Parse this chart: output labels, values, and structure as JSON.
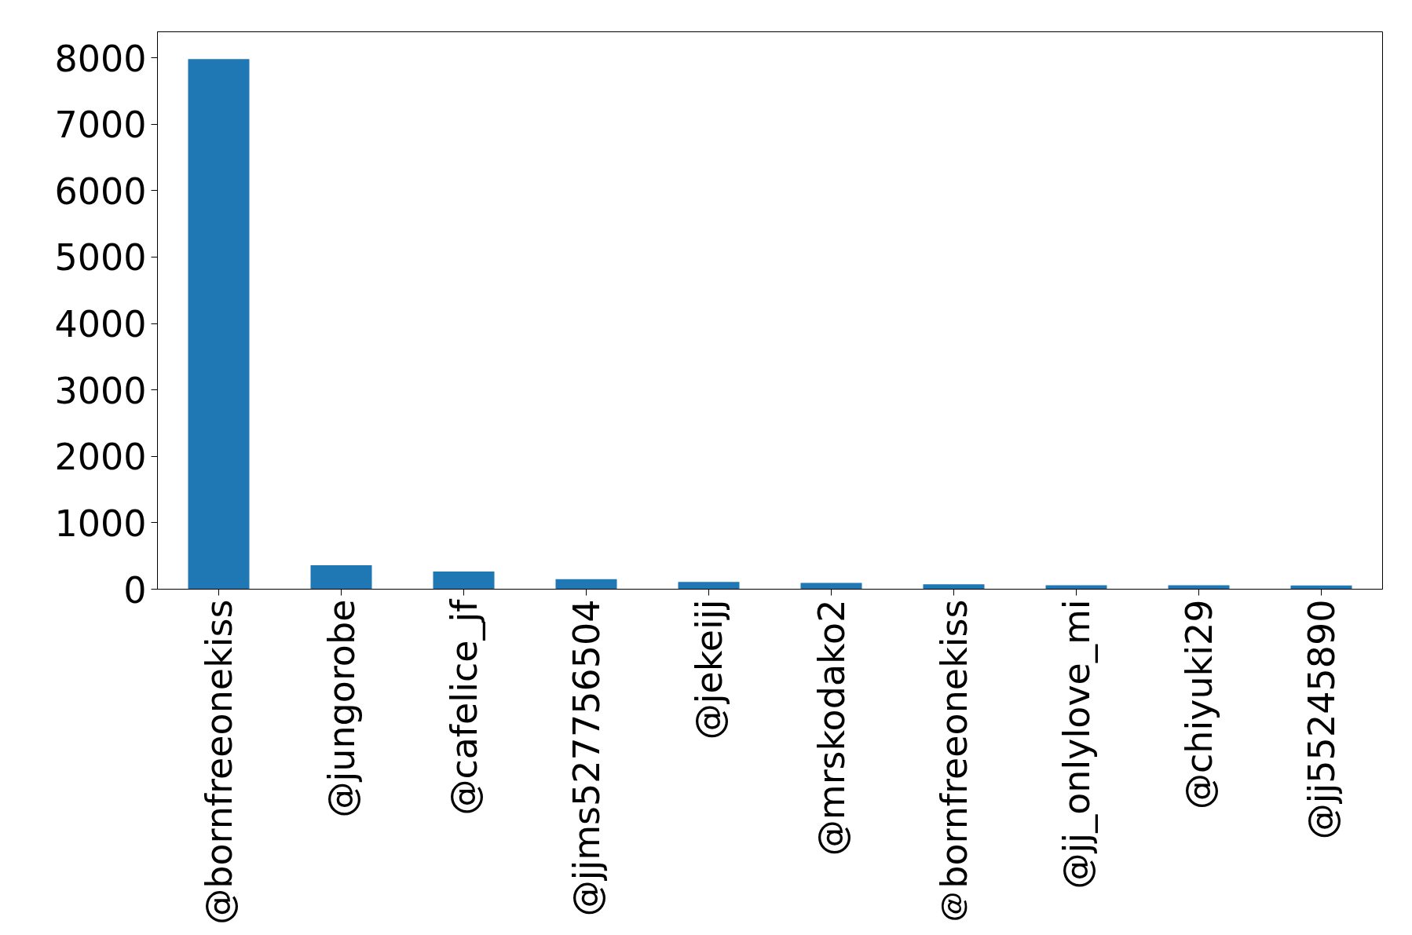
{
  "chart_data": {
    "type": "bar",
    "categories": [
      "@bornfreeonekiss",
      "@jungorobe",
      "@cafelice_jf",
      "@jjms527756504",
      "@jekeijj",
      "@mrskodako2",
      "＠bornfreeonekiss",
      "@jj_onlylove_mi",
      "@chiyuki29",
      "@jj55245890"
    ],
    "values": [
      7980,
      360,
      265,
      150,
      110,
      95,
      75,
      60,
      60,
      55
    ],
    "color": "#1f77b4",
    "ylim": [
      0,
      8390
    ],
    "yticks": [
      0,
      1000,
      2000,
      3000,
      4000,
      5000,
      6000,
      7000,
      8000
    ],
    "grid": false
  }
}
